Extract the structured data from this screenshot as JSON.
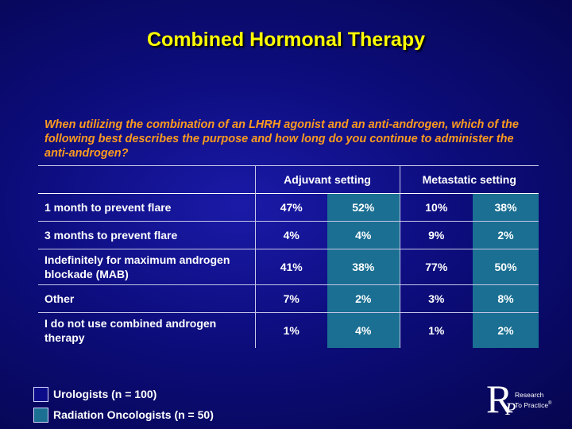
{
  "title": "Combined Hormonal Therapy",
  "question": "When utilizing the combination of an LHRH agonist and an anti-androgen, which of the following best describes the purpose and how long do you continue to administer the anti-androgen?",
  "table": {
    "headers": [
      "Adjuvant setting",
      "Metastatic setting"
    ],
    "rows": [
      {
        "label": "1 month to prevent flare",
        "values": [
          "47%",
          "52%",
          "10%",
          "38%"
        ]
      },
      {
        "label": "3 months to prevent flare",
        "values": [
          "4%",
          "4%",
          "9%",
          "2%"
        ]
      },
      {
        "label": "Indefinitely for maximum androgen blockade (MAB)",
        "values": [
          "41%",
          "38%",
          "77%",
          "50%"
        ]
      },
      {
        "label": "Other",
        "values": [
          "7%",
          "2%",
          "3%",
          "8%"
        ]
      },
      {
        "label": "I do not use combined androgen therapy",
        "values": [
          "1%",
          "4%",
          "1%",
          "2%"
        ]
      }
    ]
  },
  "legend": [
    {
      "label": "Urologists  (n = 100)",
      "color": "#0c0c8a"
    },
    {
      "label": "Radiation Oncologists  (n = 50)",
      "color": "#1a6f92"
    }
  ],
  "logo": {
    "letter_r": "R",
    "letter_p": "P",
    "line1": "Research",
    "line2": "To Practice",
    "mark": "®"
  }
}
